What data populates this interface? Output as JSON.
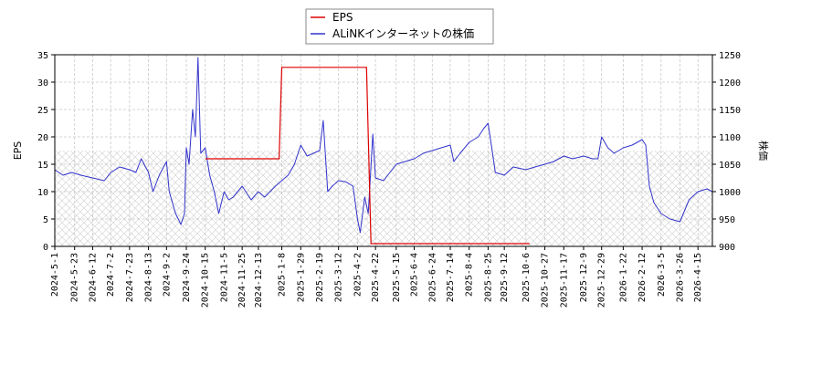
{
  "chart_data": {
    "type": "line",
    "legend": [
      {
        "name": "EPS",
        "color": "#dd0000"
      },
      {
        "name": "ALiNKインターネットの株価",
        "color": "#3333cc"
      }
    ],
    "legend_placement": "top-center",
    "ylabel_left": "EPS",
    "ylabel_right": "株価",
    "ylim_left": [
      0,
      35
    ],
    "ylim_right": [
      900,
      1250
    ],
    "yticks_left": [
      "0",
      "5",
      "10",
      "15",
      "20",
      "25",
      "30",
      "35"
    ],
    "yticks_right": [
      "900",
      "950",
      "1000",
      "1050",
      "1100",
      "1150",
      "1200",
      "1250"
    ],
    "xlim": [
      "2024-05-01",
      "2026-05-01"
    ],
    "xticks": [
      "2024-5-1",
      "2024-5-23",
      "2024-6-12",
      "2024-7-2",
      "2024-7-23",
      "2024-8-13",
      "2024-9-2",
      "2024-9-24",
      "2024-10-15",
      "2024-11-5",
      "2024-11-25",
      "2024-12-13",
      "2025-1-8",
      "2025-1-29",
      "2025-2-19",
      "2025-3-12",
      "2025-4-2",
      "2025-4-22",
      "2025-5-15",
      "2025-6-4",
      "2025-6-24",
      "2025-7-14",
      "2025-8-4",
      "2025-8-25",
      "2025-9-12",
      "2025-10-6",
      "2025-10-27",
      "2025-11-17",
      "2025-12-9",
      "2025-12-29",
      "2026-1-22",
      "2026-2-12",
      "2026-3-5",
      "2026-3-26",
      "2026-4-15"
    ],
    "grid": true,
    "hatch_band_right": [
      900,
      1075
    ],
    "eps_series": {
      "name": "EPS",
      "points": [
        [
          "2024-10-15",
          16
        ],
        [
          "2025-01-05",
          16
        ],
        [
          "2025-01-08",
          32.7
        ],
        [
          "2025-04-12",
          32.7
        ],
        [
          "2025-04-17",
          0.5
        ],
        [
          "2025-10-10",
          0.5
        ]
      ]
    },
    "price_series": {
      "name": "ALiNKインターネットの株価",
      "points": [
        [
          "2024-05-01",
          1040
        ],
        [
          "2024-05-10",
          1030
        ],
        [
          "2024-05-20",
          1035
        ],
        [
          "2024-05-30",
          1030
        ],
        [
          "2024-06-12",
          1025
        ],
        [
          "2024-06-25",
          1020
        ],
        [
          "2024-07-02",
          1035
        ],
        [
          "2024-07-12",
          1045
        ],
        [
          "2024-07-23",
          1040
        ],
        [
          "2024-07-30",
          1035
        ],
        [
          "2024-08-05",
          1060
        ],
        [
          "2024-08-13",
          1035
        ],
        [
          "2024-08-18",
          1000
        ],
        [
          "2024-08-25",
          1030
        ],
        [
          "2024-09-02",
          1055
        ],
        [
          "2024-09-05",
          1000
        ],
        [
          "2024-09-12",
          960
        ],
        [
          "2024-09-18",
          940
        ],
        [
          "2024-09-22",
          960
        ],
        [
          "2024-09-24",
          1080
        ],
        [
          "2024-09-27",
          1050
        ],
        [
          "2024-10-01",
          1150
        ],
        [
          "2024-10-04",
          1100
        ],
        [
          "2024-10-07",
          1245
        ],
        [
          "2024-10-10",
          1070
        ],
        [
          "2024-10-15",
          1080
        ],
        [
          "2024-10-20",
          1030
        ],
        [
          "2024-10-25",
          1000
        ],
        [
          "2024-10-30",
          960
        ],
        [
          "2024-11-05",
          1000
        ],
        [
          "2024-11-10",
          985
        ],
        [
          "2024-11-15",
          990
        ],
        [
          "2024-11-20",
          1000
        ],
        [
          "2024-11-25",
          1010
        ],
        [
          "2024-12-05",
          985
        ],
        [
          "2024-12-13",
          1000
        ],
        [
          "2024-12-20",
          990
        ],
        [
          "2025-01-01",
          1010
        ],
        [
          "2025-01-08",
          1020
        ],
        [
          "2025-01-15",
          1030
        ],
        [
          "2025-01-22",
          1050
        ],
        [
          "2025-01-29",
          1085
        ],
        [
          "2025-02-05",
          1065
        ],
        [
          "2025-02-12",
          1070
        ],
        [
          "2025-02-19",
          1075
        ],
        [
          "2025-02-23",
          1130
        ],
        [
          "2025-02-28",
          1000
        ],
        [
          "2025-03-05",
          1010
        ],
        [
          "2025-03-12",
          1020
        ],
        [
          "2025-03-20",
          1018
        ],
        [
          "2025-03-28",
          1010
        ],
        [
          "2025-04-02",
          950
        ],
        [
          "2025-04-05",
          925
        ],
        [
          "2025-04-10",
          990
        ],
        [
          "2025-04-14",
          960
        ],
        [
          "2025-04-19",
          1105
        ],
        [
          "2025-04-22",
          1025
        ],
        [
          "2025-05-01",
          1020
        ],
        [
          "2025-05-08",
          1035
        ],
        [
          "2025-05-15",
          1050
        ],
        [
          "2025-05-25",
          1055
        ],
        [
          "2025-06-04",
          1060
        ],
        [
          "2025-06-14",
          1070
        ],
        [
          "2025-06-24",
          1075
        ],
        [
          "2025-07-04",
          1080
        ],
        [
          "2025-07-14",
          1085
        ],
        [
          "2025-07-18",
          1055
        ],
        [
          "2025-07-25",
          1070
        ],
        [
          "2025-08-04",
          1090
        ],
        [
          "2025-08-14",
          1100
        ],
        [
          "2025-08-20",
          1115
        ],
        [
          "2025-08-25",
          1125
        ],
        [
          "2025-08-30",
          1070
        ],
        [
          "2025-09-02",
          1035
        ],
        [
          "2025-09-12",
          1030
        ],
        [
          "2025-09-22",
          1045
        ],
        [
          "2025-10-06",
          1040
        ],
        [
          "2025-10-16",
          1045
        ],
        [
          "2025-10-27",
          1050
        ],
        [
          "2025-11-06",
          1055
        ],
        [
          "2025-11-17",
          1065
        ],
        [
          "2025-11-27",
          1060
        ],
        [
          "2025-12-09",
          1065
        ],
        [
          "2025-12-19",
          1060
        ],
        [
          "2025-12-25",
          1060
        ],
        [
          "2025-12-29",
          1100
        ],
        [
          "2026-01-05",
          1080
        ],
        [
          "2026-01-12",
          1070
        ],
        [
          "2026-01-22",
          1080
        ],
        [
          "2026-02-01",
          1085
        ],
        [
          "2026-02-12",
          1095
        ],
        [
          "2026-02-16",
          1085
        ],
        [
          "2026-02-20",
          1010
        ],
        [
          "2026-02-25",
          980
        ],
        [
          "2026-03-05",
          960
        ],
        [
          "2026-03-15",
          950
        ],
        [
          "2026-03-26",
          945
        ],
        [
          "2026-04-05",
          985
        ],
        [
          "2026-04-15",
          1000
        ],
        [
          "2026-04-25",
          1005
        ],
        [
          "2026-05-01",
          1000
        ]
      ]
    }
  }
}
